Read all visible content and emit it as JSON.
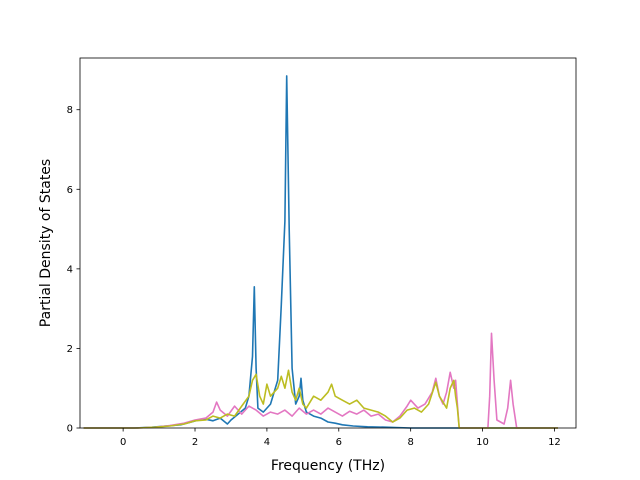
{
  "chart_data": {
    "type": "line",
    "title": "",
    "xlabel": "Frequency (THz)",
    "ylabel": "Partial Density of States",
    "xlim": [
      -1.2,
      12.6
    ],
    "ylim": [
      0,
      9.3
    ],
    "x_ticks": [
      0,
      2,
      4,
      6,
      8,
      10,
      12
    ],
    "y_ticks": [
      0,
      2,
      4,
      6,
      8
    ],
    "grid": false,
    "legend": "none",
    "series": [
      {
        "color": "#1f77b4",
        "points": [
          [
            -1.1,
            0
          ],
          [
            0.3,
            0
          ],
          [
            0.8,
            0.02
          ],
          [
            1.2,
            0.05
          ],
          [
            1.6,
            0.08
          ],
          [
            1.9,
            0.15
          ],
          [
            2.1,
            0.2
          ],
          [
            2.3,
            0.22
          ],
          [
            2.5,
            0.18
          ],
          [
            2.7,
            0.25
          ],
          [
            2.9,
            0.1
          ],
          [
            3.0,
            0.2
          ],
          [
            3.2,
            0.35
          ],
          [
            3.4,
            0.5
          ],
          [
            3.5,
            0.8
          ],
          [
            3.6,
            1.8
          ],
          [
            3.65,
            3.55
          ],
          [
            3.7,
            1.5
          ],
          [
            3.75,
            0.5
          ],
          [
            3.9,
            0.4
          ],
          [
            4.1,
            0.6
          ],
          [
            4.3,
            1.2
          ],
          [
            4.4,
            3.1
          ],
          [
            4.5,
            5.2
          ],
          [
            4.55,
            8.85
          ],
          [
            4.62,
            5.0
          ],
          [
            4.7,
            1.5
          ],
          [
            4.8,
            0.6
          ],
          [
            4.9,
            0.8
          ],
          [
            4.95,
            1.25
          ],
          [
            5.0,
            0.7
          ],
          [
            5.1,
            0.4
          ],
          [
            5.3,
            0.3
          ],
          [
            5.5,
            0.25
          ],
          [
            5.7,
            0.15
          ],
          [
            5.9,
            0.12
          ],
          [
            6.1,
            0.08
          ],
          [
            6.4,
            0.05
          ],
          [
            6.8,
            0.03
          ],
          [
            7.3,
            0.02
          ],
          [
            8.0,
            0
          ],
          [
            12.1,
            0
          ]
        ]
      },
      {
        "color": "#e377c2",
        "points": [
          [
            -1.1,
            0
          ],
          [
            0.4,
            0
          ],
          [
            0.9,
            0.02
          ],
          [
            1.3,
            0.06
          ],
          [
            1.7,
            0.12
          ],
          [
            2.0,
            0.2
          ],
          [
            2.3,
            0.25
          ],
          [
            2.5,
            0.4
          ],
          [
            2.6,
            0.65
          ],
          [
            2.7,
            0.45
          ],
          [
            2.9,
            0.3
          ],
          [
            3.1,
            0.55
          ],
          [
            3.3,
            0.35
          ],
          [
            3.5,
            0.55
          ],
          [
            3.7,
            0.45
          ],
          [
            3.9,
            0.3
          ],
          [
            4.1,
            0.4
          ],
          [
            4.3,
            0.35
          ],
          [
            4.5,
            0.45
          ],
          [
            4.7,
            0.3
          ],
          [
            4.9,
            0.5
          ],
          [
            5.1,
            0.35
          ],
          [
            5.3,
            0.45
          ],
          [
            5.5,
            0.35
          ],
          [
            5.7,
            0.5
          ],
          [
            5.9,
            0.4
          ],
          [
            6.1,
            0.3
          ],
          [
            6.3,
            0.42
          ],
          [
            6.5,
            0.35
          ],
          [
            6.7,
            0.45
          ],
          [
            6.9,
            0.3
          ],
          [
            7.1,
            0.35
          ],
          [
            7.3,
            0.2
          ],
          [
            7.5,
            0.15
          ],
          [
            7.7,
            0.3
          ],
          [
            7.9,
            0.55
          ],
          [
            8.0,
            0.7
          ],
          [
            8.2,
            0.5
          ],
          [
            8.4,
            0.6
          ],
          [
            8.6,
            0.9
          ],
          [
            8.7,
            1.25
          ],
          [
            8.8,
            0.8
          ],
          [
            8.9,
            0.6
          ],
          [
            9.0,
            0.9
          ],
          [
            9.1,
            1.4
          ],
          [
            9.2,
            1.0
          ],
          [
            9.25,
            1.2
          ],
          [
            9.3,
            0.6
          ],
          [
            9.35,
            0
          ],
          [
            10.15,
            0
          ],
          [
            10.2,
            0.8
          ],
          [
            10.25,
            2.38
          ],
          [
            10.32,
            1.2
          ],
          [
            10.4,
            0.2
          ],
          [
            10.6,
            0.1
          ],
          [
            10.7,
            0.5
          ],
          [
            10.78,
            1.2
          ],
          [
            10.85,
            0.6
          ],
          [
            10.95,
            0
          ],
          [
            12.1,
            0
          ]
        ]
      },
      {
        "color": "#bcbd22",
        "points": [
          [
            -1.1,
            0
          ],
          [
            0.4,
            0
          ],
          [
            0.9,
            0.02
          ],
          [
            1.3,
            0.05
          ],
          [
            1.7,
            0.1
          ],
          [
            2.0,
            0.18
          ],
          [
            2.3,
            0.2
          ],
          [
            2.5,
            0.3
          ],
          [
            2.7,
            0.25
          ],
          [
            2.9,
            0.35
          ],
          [
            3.1,
            0.3
          ],
          [
            3.3,
            0.55
          ],
          [
            3.5,
            0.8
          ],
          [
            3.6,
            1.2
          ],
          [
            3.7,
            1.35
          ],
          [
            3.8,
            0.8
          ],
          [
            3.9,
            0.6
          ],
          [
            4.0,
            1.1
          ],
          [
            4.1,
            0.8
          ],
          [
            4.3,
            1.0
          ],
          [
            4.4,
            1.3
          ],
          [
            4.5,
            1.0
          ],
          [
            4.6,
            1.45
          ],
          [
            4.7,
            0.9
          ],
          [
            4.8,
            0.7
          ],
          [
            4.9,
            1.0
          ],
          [
            5.0,
            0.6
          ],
          [
            5.1,
            0.5
          ],
          [
            5.3,
            0.8
          ],
          [
            5.5,
            0.7
          ],
          [
            5.7,
            0.9
          ],
          [
            5.8,
            1.1
          ],
          [
            5.9,
            0.8
          ],
          [
            6.1,
            0.7
          ],
          [
            6.3,
            0.6
          ],
          [
            6.5,
            0.7
          ],
          [
            6.7,
            0.5
          ],
          [
            6.9,
            0.45
          ],
          [
            7.1,
            0.4
          ],
          [
            7.3,
            0.3
          ],
          [
            7.5,
            0.15
          ],
          [
            7.7,
            0.25
          ],
          [
            7.9,
            0.45
          ],
          [
            8.1,
            0.5
          ],
          [
            8.3,
            0.4
          ],
          [
            8.5,
            0.6
          ],
          [
            8.7,
            1.15
          ],
          [
            8.8,
            0.8
          ],
          [
            9.0,
            0.5
          ],
          [
            9.1,
            1.0
          ],
          [
            9.2,
            1.2
          ],
          [
            9.25,
            0.8
          ],
          [
            9.3,
            0.5
          ],
          [
            9.35,
            0
          ],
          [
            12.1,
            0
          ]
        ]
      }
    ]
  }
}
